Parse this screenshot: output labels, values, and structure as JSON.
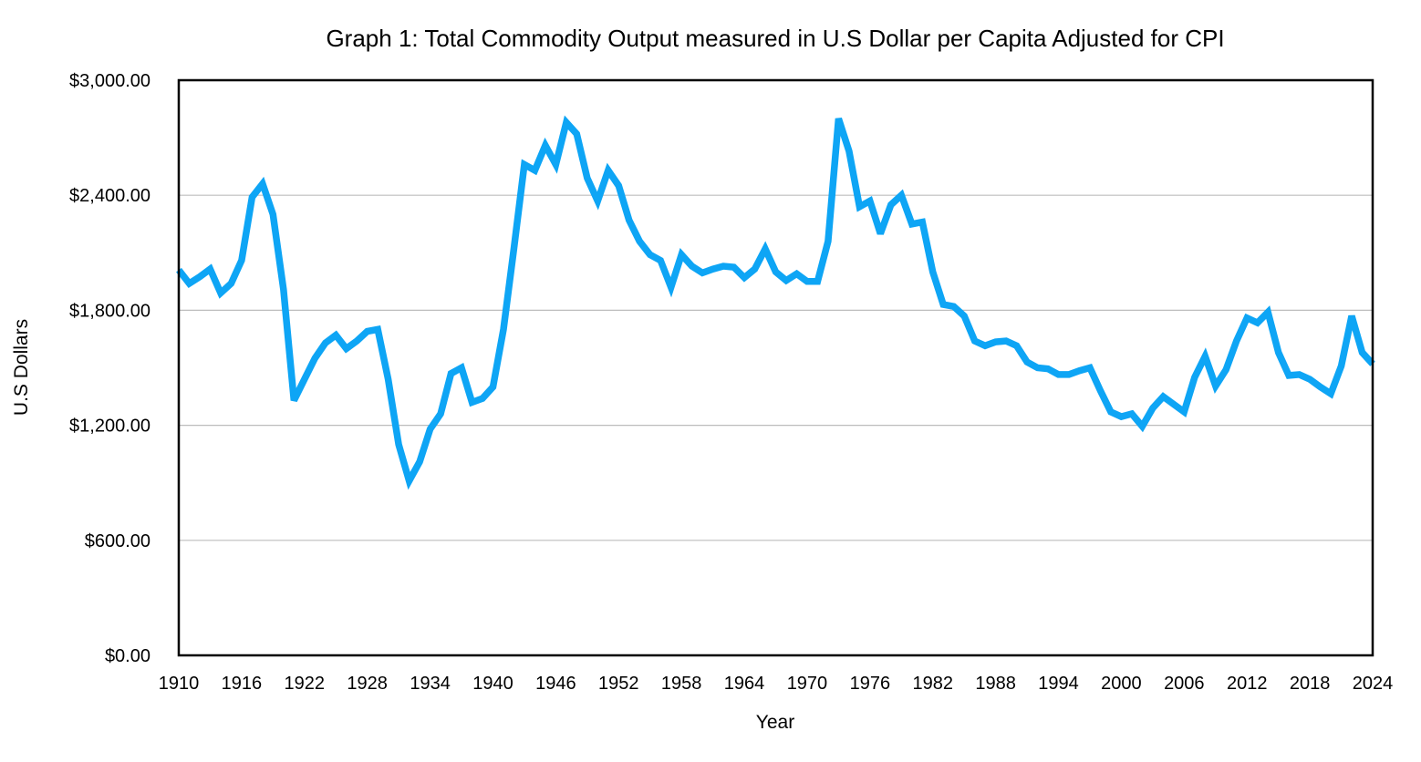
{
  "chart_data": {
    "type": "line",
    "title": "Graph 1: Total Commodity Output measured in U.S Dollar per Capita Adjusted for CPI",
    "xlabel": "Year",
    "ylabel": "U.S Dollars",
    "xlim": [
      1910,
      2024
    ],
    "ylim": [
      0,
      3000
    ],
    "x_ticks": [
      1910,
      1916,
      1922,
      1928,
      1934,
      1940,
      1946,
      1952,
      1958,
      1964,
      1970,
      1976,
      1982,
      1988,
      1994,
      2000,
      2006,
      2012,
      2018,
      2024
    ],
    "y_ticks": [
      0,
      600,
      1200,
      1800,
      2400,
      3000
    ],
    "y_tick_labels": [
      "$0.00",
      "$600.00",
      "$1,200.00",
      "$1,800.00",
      "$2,400.00",
      "$3,000.00"
    ],
    "grid": "horizontal",
    "line_color": "#0ea5f5",
    "series": [
      {
        "x": [
          1910,
          1911,
          1912,
          1913,
          1914,
          1915,
          1916,
          1917,
          1918,
          1919,
          1920,
          1921,
          1922,
          1923,
          1924,
          1925,
          1926,
          1927,
          1928,
          1929,
          1930,
          1931,
          1932,
          1933,
          1934,
          1935,
          1936,
          1937,
          1938,
          1939,
          1940,
          1941,
          1942,
          1943,
          1944,
          1945,
          1946,
          1947,
          1948,
          1949,
          1950,
          1951,
          1952,
          1953,
          1954,
          1955,
          1956,
          1957,
          1958,
          1959,
          1960,
          1961,
          1962,
          1963,
          1964,
          1965,
          1966,
          1967,
          1968,
          1969,
          1970,
          1971,
          1972,
          1973,
          1974,
          1975,
          1976,
          1977,
          1978,
          1979,
          1980,
          1981,
          1982,
          1983,
          1984,
          1985,
          1986,
          1987,
          1988,
          1989,
          1990,
          1991,
          1992,
          1993,
          1994,
          1995,
          1996,
          1997,
          1998,
          1999,
          2000,
          2001,
          2002,
          2003,
          2004,
          2005,
          2006,
          2007,
          2008,
          2009,
          2010,
          2011,
          2012,
          2013,
          2014,
          2015,
          2016,
          2017,
          2018,
          2019,
          2020,
          2021,
          2022,
          2023,
          2024
        ],
        "values": [
          2010,
          1940,
          1975,
          2015,
          1890,
          1940,
          2060,
          2390,
          2460,
          2300,
          1910,
          1330,
          1440,
          1550,
          1630,
          1670,
          1600,
          1640,
          1690,
          1700,
          1440,
          1100,
          910,
          1010,
          1180,
          1260,
          1470,
          1500,
          1320,
          1340,
          1400,
          1700,
          2120,
          2560,
          2530,
          2660,
          2560,
          2780,
          2720,
          2490,
          2370,
          2530,
          2450,
          2270,
          2160,
          2090,
          2060,
          1920,
          2090,
          2030,
          1995,
          2015,
          2030,
          2025,
          1970,
          2015,
          2120,
          2000,
          1955,
          1990,
          1950,
          1950,
          2160,
          2800,
          2630,
          2340,
          2370,
          2200,
          2350,
          2400,
          2250,
          2260,
          2000,
          1830,
          1820,
          1770,
          1640,
          1615,
          1635,
          1640,
          1615,
          1530,
          1500,
          1495,
          1465,
          1465,
          1485,
          1500,
          1380,
          1270,
          1245,
          1260,
          1195,
          1290,
          1350,
          1310,
          1270,
          1450,
          1560,
          1405,
          1490,
          1640,
          1760,
          1735,
          1790,
          1580,
          1460,
          1465,
          1440,
          1400,
          1365,
          1510,
          1770,
          1580,
          1520
        ]
      }
    ]
  }
}
